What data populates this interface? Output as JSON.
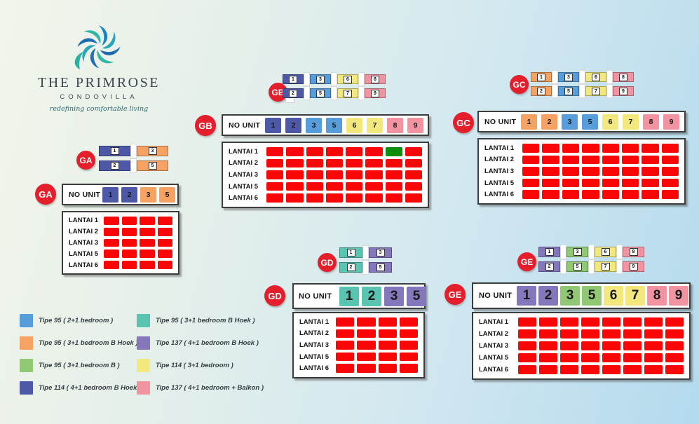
{
  "logo": {
    "title": "THE PRIMROSE",
    "subtitle": "CONDOVILLA",
    "tagline": "redefining comfortable living"
  },
  "no_unit_label": "NO UNIT",
  "floors": [
    "LANTAI 1",
    "LANTAI 2",
    "LANTAI 3",
    "LANTAI 5",
    "LANTAI 6"
  ],
  "status_colors": {
    "red": "#f90707",
    "green": "#0b8e0b"
  },
  "badge_color": "#e51e2b",
  "unit_colors": {
    "blue": "#569dd9",
    "orange": "#f5a263",
    "green": "#90c873",
    "indigo": "#4d58a7",
    "teal": "#59c5b1",
    "purple": "#8577bb",
    "yellow": "#f2e87e",
    "pink": "#f293a1"
  },
  "sections": [
    {
      "id": "GA",
      "units": [
        {
          "no": "1",
          "color": "indigo"
        },
        {
          "no": "2",
          "color": "indigo"
        },
        {
          "no": "3",
          "color": "orange"
        },
        {
          "no": "5",
          "color": "orange"
        }
      ],
      "plan": {
        "top": [
          {
            "no": "1",
            "color": "indigo"
          },
          {
            "no": "3",
            "color": "orange"
          }
        ],
        "bottom": [
          {
            "no": "2",
            "color": "indigo"
          },
          {
            "no": "5",
            "color": "orange"
          }
        ]
      },
      "grid": [
        [
          "red",
          "red",
          "red",
          "red"
        ],
        [
          "red",
          "red",
          "red",
          "red"
        ],
        [
          "red",
          "red",
          "red",
          "red"
        ],
        [
          "red",
          "red",
          "red",
          "red"
        ],
        [
          "red",
          "red",
          "red",
          "red"
        ]
      ]
    },
    {
      "id": "GB",
      "units": [
        {
          "no": "1",
          "color": "indigo"
        },
        {
          "no": "2",
          "color": "indigo"
        },
        {
          "no": "3",
          "color": "blue"
        },
        {
          "no": "5",
          "color": "blue"
        },
        {
          "no": "6",
          "color": "yellow"
        },
        {
          "no": "7",
          "color": "yellow"
        },
        {
          "no": "8",
          "color": "pink"
        },
        {
          "no": "9",
          "color": "pink"
        }
      ],
      "plan": {
        "top": [
          {
            "no": "1",
            "color": "indigo"
          },
          {
            "no": "3",
            "color": "blue"
          },
          {
            "no": "6",
            "color": "yellow"
          },
          {
            "no": "8",
            "color": "pink"
          }
        ],
        "bottom": [
          {
            "no": "2",
            "color": "indigo"
          },
          {
            "no": "5",
            "color": "blue"
          },
          {
            "no": "7",
            "color": "yellow"
          },
          {
            "no": "9",
            "color": "pink"
          }
        ]
      },
      "grid": [
        [
          "red",
          "red",
          "red",
          "red",
          "red",
          "red",
          "green",
          "red"
        ],
        [
          "red",
          "red",
          "red",
          "red",
          "red",
          "red",
          "red",
          "red"
        ],
        [
          "red",
          "red",
          "red",
          "red",
          "red",
          "red",
          "red",
          "red"
        ],
        [
          "red",
          "red",
          "red",
          "red",
          "red",
          "red",
          "red",
          "red"
        ],
        [
          "red",
          "red",
          "red",
          "red",
          "red",
          "red",
          "red",
          "red"
        ]
      ]
    },
    {
      "id": "GC",
      "units": [
        {
          "no": "1",
          "color": "orange"
        },
        {
          "no": "2",
          "color": "orange"
        },
        {
          "no": "3",
          "color": "blue"
        },
        {
          "no": "5",
          "color": "blue"
        },
        {
          "no": "6",
          "color": "yellow"
        },
        {
          "no": "7",
          "color": "yellow"
        },
        {
          "no": "8",
          "color": "pink"
        },
        {
          "no": "9",
          "color": "pink"
        }
      ],
      "plan": {
        "top": [
          {
            "no": "1",
            "color": "orange"
          },
          {
            "no": "3",
            "color": "blue"
          },
          {
            "no": "6",
            "color": "yellow"
          },
          {
            "no": "8",
            "color": "pink"
          }
        ],
        "bottom": [
          {
            "no": "2",
            "color": "orange"
          },
          {
            "no": "5",
            "color": "blue"
          },
          {
            "no": "7",
            "color": "yellow"
          },
          {
            "no": "9",
            "color": "pink"
          }
        ]
      },
      "grid": [
        [
          "red",
          "red",
          "red",
          "red",
          "red",
          "red",
          "red",
          "red"
        ],
        [
          "red",
          "red",
          "red",
          "red",
          "red",
          "red",
          "red",
          "red"
        ],
        [
          "red",
          "red",
          "red",
          "red",
          "red",
          "red",
          "red",
          "red"
        ],
        [
          "red",
          "red",
          "red",
          "red",
          "red",
          "red",
          "red",
          "red"
        ],
        [
          "red",
          "red",
          "red",
          "red",
          "red",
          "red",
          "red",
          "red"
        ]
      ]
    },
    {
      "id": "GD",
      "units": [
        {
          "no": "1",
          "color": "teal"
        },
        {
          "no": "2",
          "color": "teal"
        },
        {
          "no": "3",
          "color": "purple"
        },
        {
          "no": "5",
          "color": "purple"
        }
      ],
      "plan": {
        "top": [
          {
            "no": "1",
            "color": "teal"
          },
          {
            "no": "3",
            "color": "purple"
          }
        ],
        "bottom": [
          {
            "no": "2",
            "color": "teal"
          },
          {
            "no": "5",
            "color": "purple"
          }
        ]
      },
      "grid": [
        [
          "red",
          "red",
          "red",
          "red"
        ],
        [
          "red",
          "red",
          "red",
          "red"
        ],
        [
          "red",
          "red",
          "red",
          "red"
        ],
        [
          "red",
          "red",
          "red",
          "red"
        ],
        [
          "red",
          "red",
          "red",
          "red"
        ]
      ]
    },
    {
      "id": "GE",
      "units": [
        {
          "no": "1",
          "color": "purple"
        },
        {
          "no": "2",
          "color": "purple"
        },
        {
          "no": "3",
          "color": "green"
        },
        {
          "no": "5",
          "color": "green"
        },
        {
          "no": "6",
          "color": "yellow"
        },
        {
          "no": "7",
          "color": "yellow"
        },
        {
          "no": "8",
          "color": "pink"
        },
        {
          "no": "9",
          "color": "pink"
        }
      ],
      "plan": {
        "top": [
          {
            "no": "1",
            "color": "purple"
          },
          {
            "no": "3",
            "color": "green"
          },
          {
            "no": "6",
            "color": "yellow"
          },
          {
            "no": "8",
            "color": "pink"
          }
        ],
        "bottom": [
          {
            "no": "2",
            "color": "purple"
          },
          {
            "no": "5",
            "color": "green"
          },
          {
            "no": "7",
            "color": "yellow"
          },
          {
            "no": "9",
            "color": "pink"
          }
        ]
      },
      "grid": [
        [
          "red",
          "red",
          "red",
          "red",
          "red",
          "red",
          "red",
          "red"
        ],
        [
          "red",
          "red",
          "red",
          "red",
          "red",
          "red",
          "red",
          "red"
        ],
        [
          "red",
          "red",
          "red",
          "red",
          "red",
          "red",
          "red",
          "red"
        ],
        [
          "red",
          "red",
          "red",
          "red",
          "red",
          "red",
          "red",
          "red"
        ],
        [
          "red",
          "red",
          "red",
          "red",
          "red",
          "red",
          "red",
          "red"
        ]
      ]
    }
  ],
  "legend": [
    {
      "color": "blue",
      "label": "Tipe 95 ( 2+1 bedroom )"
    },
    {
      "color": "teal",
      "label": "Tipe 95 ( 3+1 bedroom B Hoek )"
    },
    {
      "color": "orange",
      "label": "Tipe 95 ( 3+1 bedroom B Hoek )"
    },
    {
      "color": "purple",
      "label": "Tipe 137 ( 4+1 bedroom B Hoek )"
    },
    {
      "color": "green",
      "label": "Tipe 95 ( 3+1 bedroom B )"
    },
    {
      "color": "yellow",
      "label": "Tipe 114 ( 3+1 bedroom )"
    },
    {
      "color": "indigo",
      "label": "Tipe 114 ( 4+1 bedroom B Hoek )"
    },
    {
      "color": "pink",
      "label": "Tipe 137 ( 4+1 bedroom + Balkon )"
    }
  ]
}
